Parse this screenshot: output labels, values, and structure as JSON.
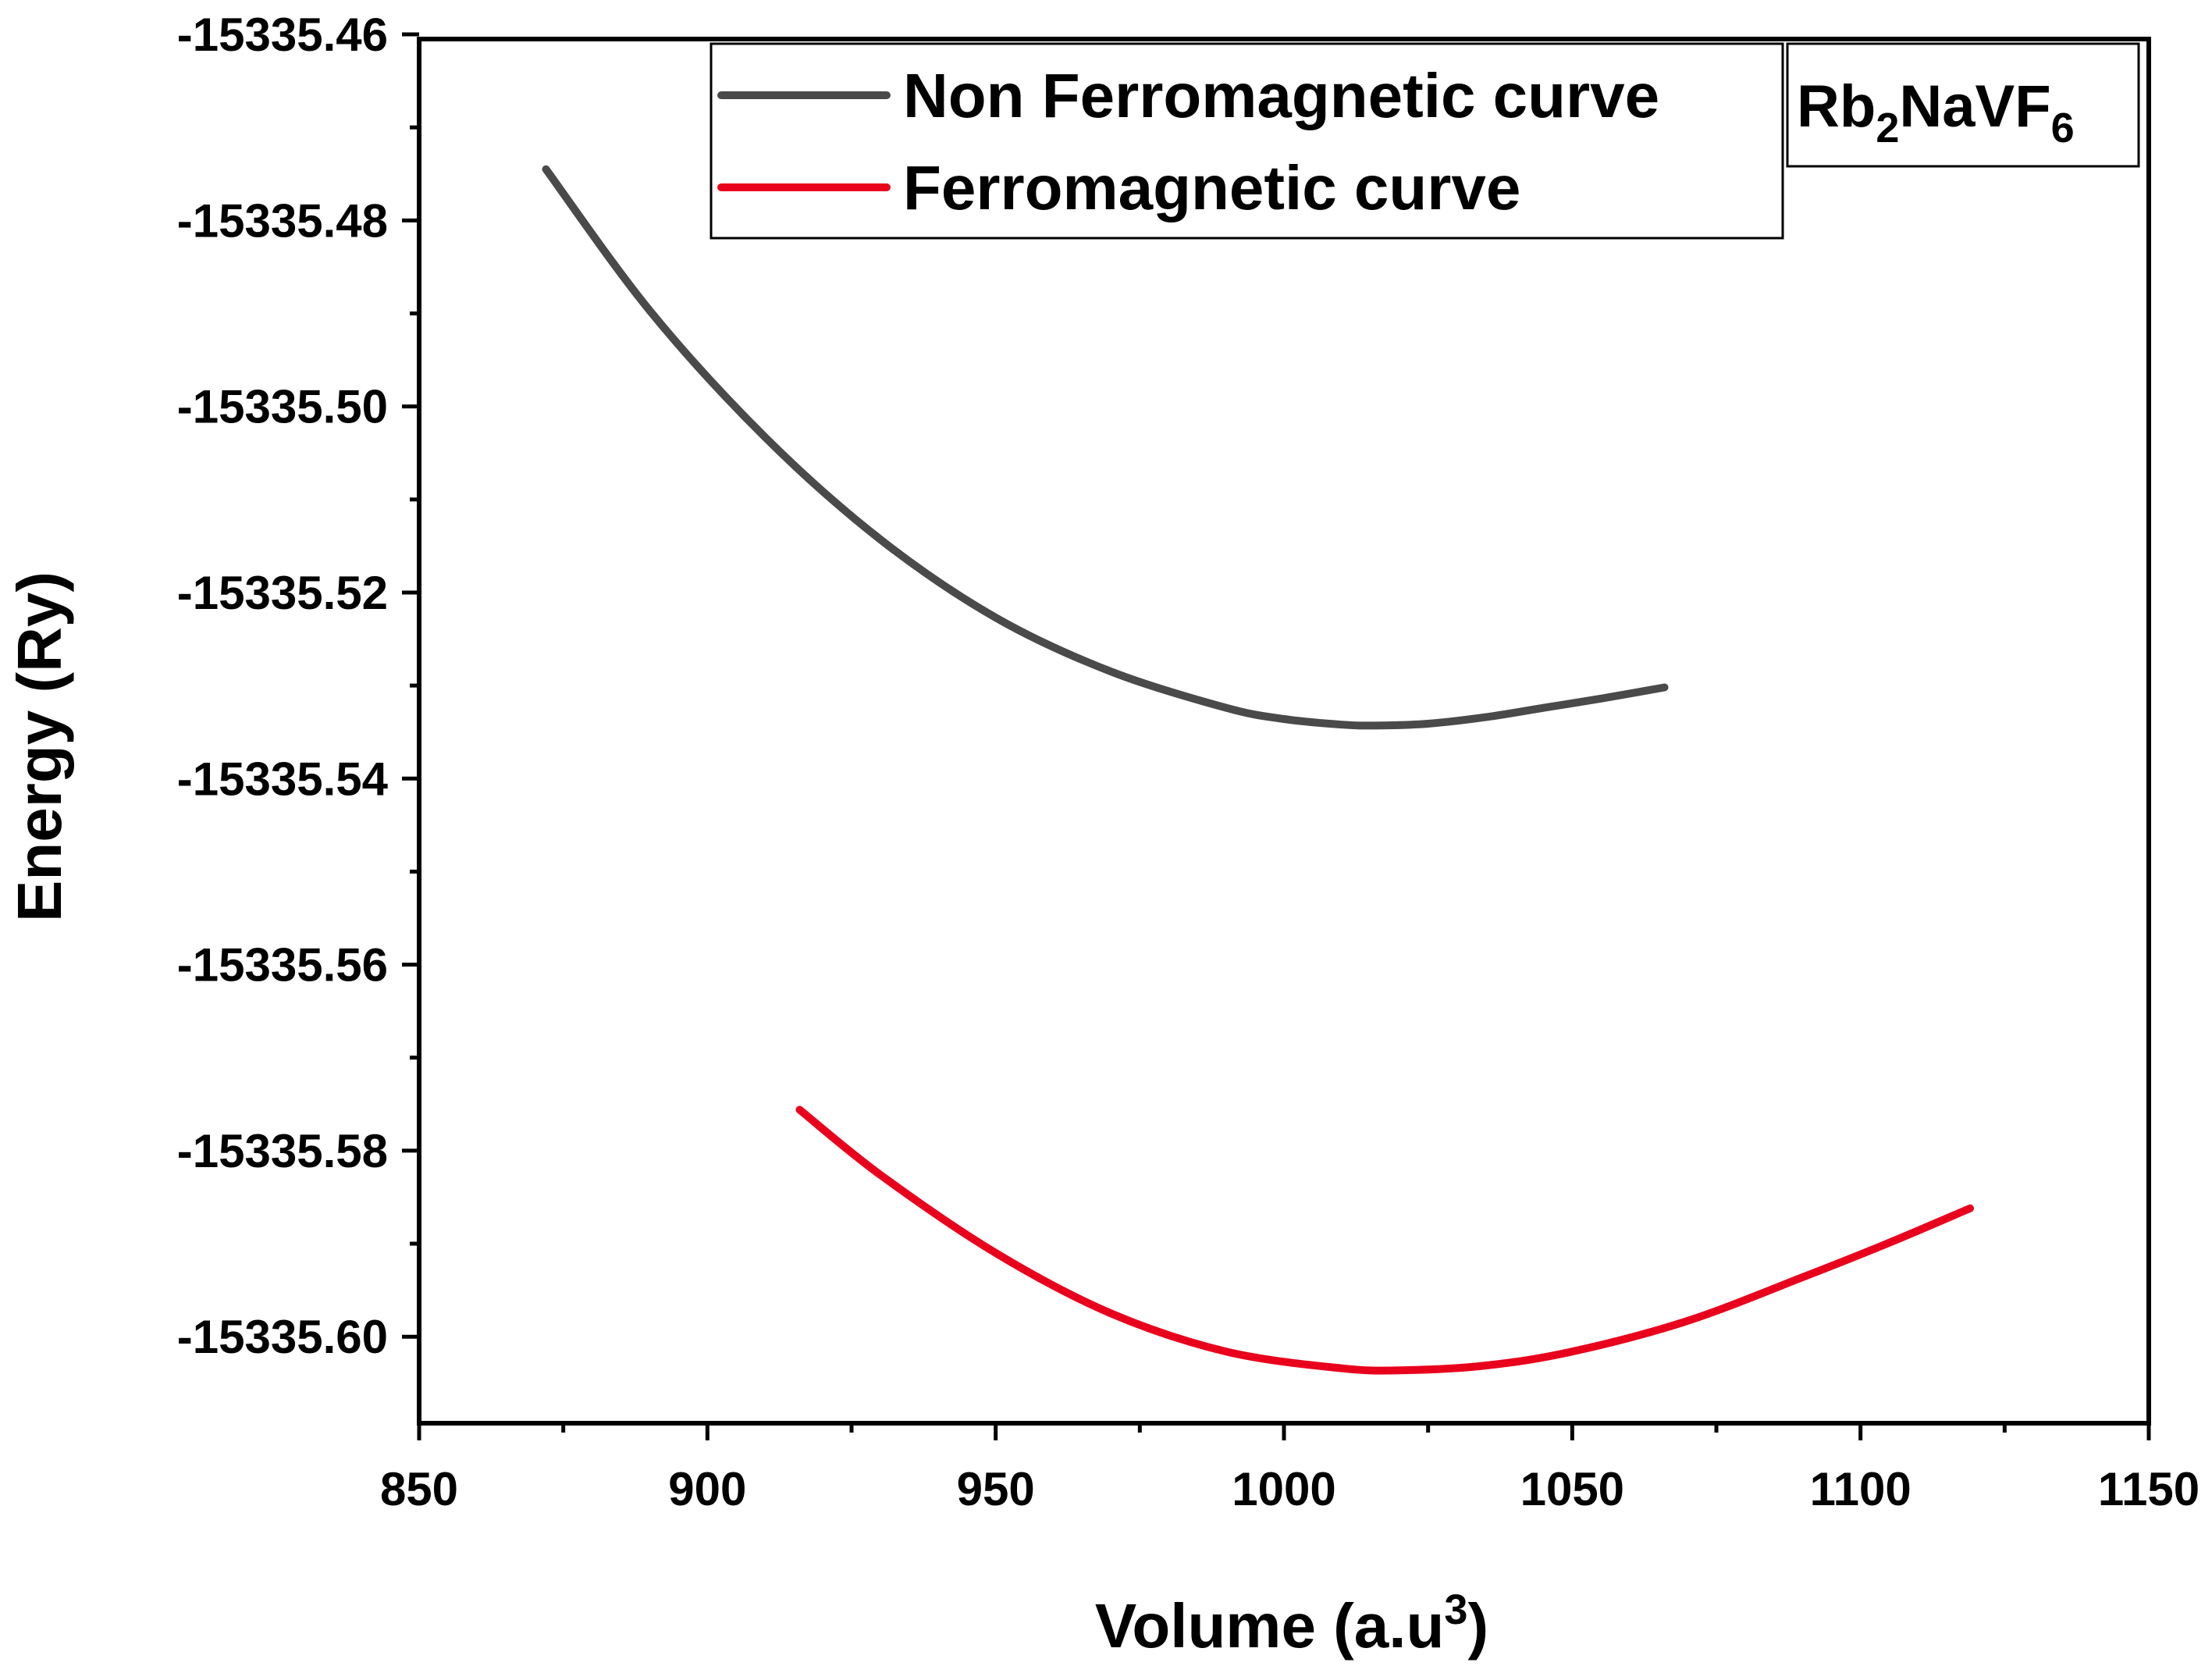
{
  "chart_data": {
    "type": "line",
    "xlabel": "Volume (a.u",
    "xlabel_sup": "3",
    "xlabel_close": ")",
    "ylabel": "Energy (Ry)",
    "xlim": [
      850,
      1150
    ],
    "ylim": [
      -15335.6093,
      -15335.4605
    ],
    "xticks": [
      850,
      900,
      950,
      1000,
      1050,
      1100,
      1150
    ],
    "xtick_labels": [
      "850",
      "900",
      "950",
      "1000",
      "1050",
      "1100",
      "1150"
    ],
    "yticks": [
      -15335.46,
      -15335.48,
      -15335.5,
      -15335.52,
      -15335.54,
      -15335.56,
      -15335.58,
      -15335.6
    ],
    "ytick_labels": [
      "-15335.46",
      "-15335.48",
      "-15335.50",
      "-15335.52",
      "-15335.54",
      "-15335.56",
      "-15335.58",
      "-15335.60"
    ],
    "legend_position": "top-center",
    "annotation": {
      "parts": [
        "Rb",
        "2",
        "NaVF",
        "6"
      ],
      "position": "top-right"
    },
    "series": [
      {
        "name": "Non Ferromagnetic curve",
        "color": "#4a4a4a",
        "x": [
          872,
          890,
          910,
          930,
          950,
          970,
          990,
          1000,
          1010,
          1016,
          1025,
          1035,
          1045,
          1055,
          1066
        ],
        "y": [
          -15335.4745,
          -15335.4897,
          -15335.5033,
          -15335.5143,
          -15335.5227,
          -15335.5285,
          -15335.5324,
          -15335.5336,
          -15335.5342,
          -15335.5343,
          -15335.5341,
          -15335.5334,
          -15335.5324,
          -15335.5314,
          -15335.5302
        ]
      },
      {
        "name": "Ferromagnetic curve",
        "color": "#e8001c",
        "x": [
          916,
          930,
          950,
          970,
          990,
          1010,
          1021,
          1035,
          1050,
          1070,
          1090,
          1105,
          1119
        ],
        "y": [
          -15335.5756,
          -15335.5826,
          -15335.591,
          -15335.5975,
          -15335.6016,
          -15335.6034,
          -15335.6036,
          -15335.6031,
          -15335.6016,
          -15335.5983,
          -15335.5936,
          -15335.5899,
          -15335.5862
        ]
      }
    ]
  }
}
